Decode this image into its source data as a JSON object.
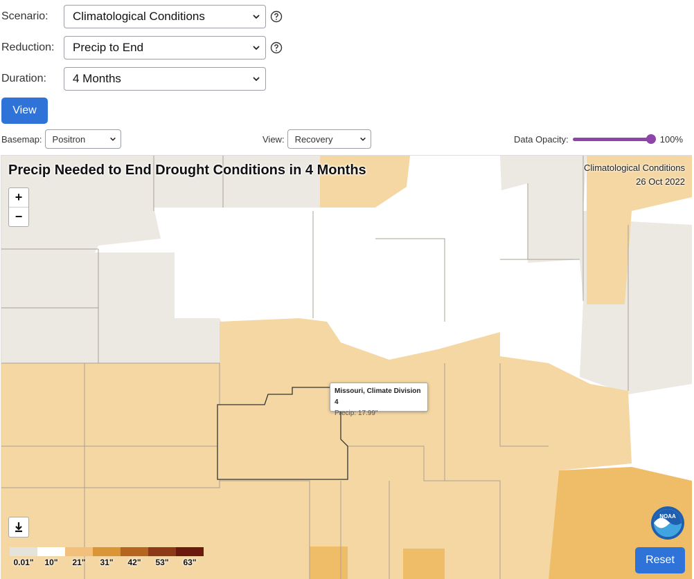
{
  "form": {
    "scenario": {
      "label": "Scenario:",
      "value": "Climatological Conditions"
    },
    "reduction": {
      "label": "Reduction:",
      "value": "Precip to End"
    },
    "duration": {
      "label": "Duration:",
      "value": "4 Months"
    },
    "view_button": "View"
  },
  "controls": {
    "basemap_label": "Basemap:",
    "basemap_value": "Positron",
    "view_label": "View:",
    "view_value": "Recovery",
    "opacity_label": "Data Opacity:",
    "opacity_value": "100%",
    "opacity_level": 1.0
  },
  "map": {
    "title": "Precip Needed to End Drought Conditions in 4 Months",
    "scenario_caption": "Climatological Conditions",
    "date_caption": "26 Oct 2022",
    "tooltip": {
      "region": "Missouri, Climate Division 4",
      "value": "Precip: 17.99\""
    },
    "legend": [
      {
        "label": "0.01\"",
        "color": "#e6e2dc"
      },
      {
        "label": "10\"",
        "color": "#ffffff"
      },
      {
        "label": "21\"",
        "color": "#f2c07a"
      },
      {
        "label": "31\"",
        "color": "#d99536"
      },
      {
        "label": "42\"",
        "color": "#b5651e"
      },
      {
        "label": "53\"",
        "color": "#8c3a17"
      },
      {
        "label": "63\"",
        "color": "#6b1a0d"
      }
    ],
    "reset_button": "Reset",
    "logo_text": "NOAA"
  },
  "colors": {
    "accent": "#2f73d8",
    "slider": "#8e44a8",
    "no_data": "#e6e2dc",
    "light": "#f4d7a3",
    "medium": "#efbd67"
  }
}
